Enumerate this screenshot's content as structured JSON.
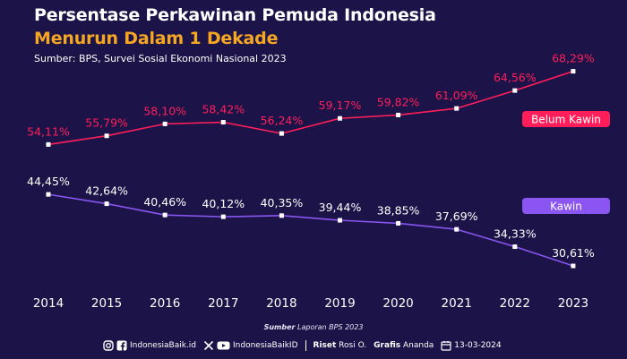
{
  "header": {
    "title_line1": "Persentase Perkawinan Pemuda Indonesia",
    "title_line2": "Menurun Dalam 1 Dekade",
    "source": "Sumber: BPS, Survei Sosial Ekonomi Nasional 2023"
  },
  "chart_data": {
    "type": "line",
    "categories": [
      "2014",
      "2015",
      "2016",
      "2017",
      "2018",
      "2019",
      "2020",
      "2021",
      "2022",
      "2023"
    ],
    "series": [
      {
        "name": "Belum Kawin",
        "color": "#ff1e5a",
        "values": [
          54.11,
          55.79,
          58.1,
          58.42,
          56.24,
          59.17,
          59.82,
          61.09,
          64.56,
          68.29
        ],
        "labels": [
          "54,11%",
          "55,79%",
          "58,10%",
          "58,42%",
          "56,24%",
          "59,17%",
          "59,82%",
          "61,09%",
          "64,56%",
          "68,29%"
        ]
      },
      {
        "name": "Kawin",
        "color": "#8a55f0",
        "values": [
          44.45,
          42.64,
          40.46,
          40.12,
          40.35,
          39.44,
          38.85,
          37.69,
          34.33,
          30.61
        ],
        "labels": [
          "44,45%",
          "42,64%",
          "40,46%",
          "40,12%",
          "40,35%",
          "39,44%",
          "38,85%",
          "37,69%",
          "34,33%",
          "30,61%"
        ]
      }
    ],
    "xlabel": "",
    "ylabel": "",
    "grid": false,
    "legend": "inline-right"
  },
  "footer": {
    "source_label": "Sumber",
    "source_text": "Laporan BPS 2023",
    "handle1": "IndonesiaBaik.id",
    "handle2": "IndonesiaBaikID",
    "riset_label": "Riset",
    "riset_name": "Rosi O.",
    "grafis_label": "Grafis",
    "grafis_name": "Ananda",
    "date": "13-03-2024",
    "icons": [
      "instagram-icon",
      "facebook-icon",
      "x-icon",
      "youtube-icon",
      "calendar-icon"
    ]
  }
}
